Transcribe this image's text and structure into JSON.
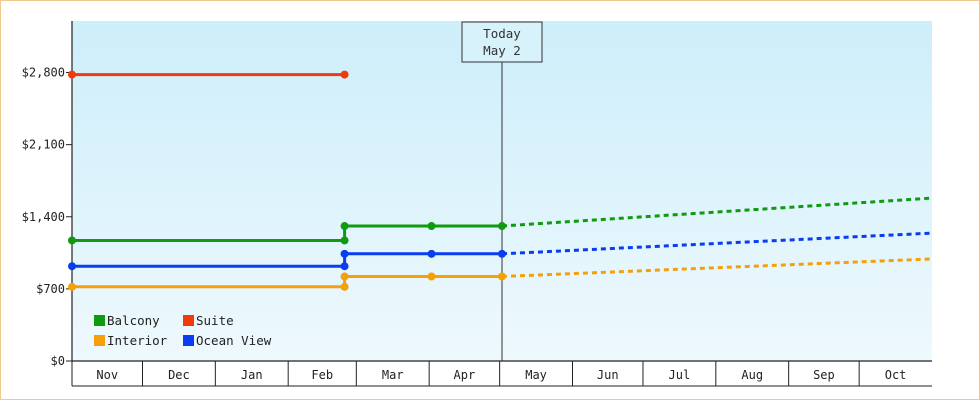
{
  "chart_data": {
    "type": "line",
    "title": "",
    "xlabel": "",
    "ylabel": "",
    "ylim": [
      0,
      3300
    ],
    "y_ticks": [
      {
        "value": 0,
        "label": "$0"
      },
      {
        "value": 700,
        "label": "$700"
      },
      {
        "value": 1400,
        "label": "$1,400"
      },
      {
        "value": 2100,
        "label": "$2,100"
      },
      {
        "value": 2800,
        "label": "$2,800"
      }
    ],
    "months": [
      "Nov",
      "Dec",
      "Jan",
      "Feb",
      "Mar",
      "Apr",
      "May",
      "Jun",
      "Jul",
      "Aug",
      "Sep",
      "Oct"
    ],
    "x_range": [
      "Nov 1",
      "Oct 31"
    ],
    "today": {
      "line1": "Today",
      "line2": "May 2",
      "date": "May 2"
    },
    "legend_placement": "bottom-left",
    "grid": false,
    "series": [
      {
        "name": "Balcony",
        "color": "#0f9a0f",
        "history": [
          [
            "Nov 1",
            1170
          ],
          [
            "Feb 25",
            1170
          ],
          [
            "Feb 25",
            1310
          ],
          [
            "Apr 2",
            1310
          ],
          [
            "May 2",
            1310
          ]
        ],
        "markers": [
          [
            "Nov 1",
            1170
          ],
          [
            "Feb 25",
            1170
          ],
          [
            "Feb 25",
            1310
          ],
          [
            "Apr 2",
            1310
          ],
          [
            "May 2",
            1310
          ]
        ],
        "forecast": [
          [
            "May 2",
            1310
          ],
          [
            "Oct 31",
            1580
          ]
        ]
      },
      {
        "name": "Suite",
        "color": "#f03a0a",
        "history": [
          [
            "Nov 1",
            2780
          ],
          [
            "Feb 25",
            2780
          ]
        ],
        "markers": [
          [
            "Nov 1",
            2780
          ],
          [
            "Feb 25",
            2780
          ]
        ],
        "forecast": []
      },
      {
        "name": "Interior",
        "color": "#f5a00a",
        "history": [
          [
            "Nov 1",
            720
          ],
          [
            "Feb 25",
            720
          ],
          [
            "Feb 25",
            820
          ],
          [
            "Apr 2",
            820
          ],
          [
            "May 2",
            820
          ]
        ],
        "markers": [
          [
            "Nov 1",
            720
          ],
          [
            "Feb 25",
            720
          ],
          [
            "Feb 25",
            820
          ],
          [
            "Apr 2",
            820
          ],
          [
            "May 2",
            820
          ]
        ],
        "forecast": [
          [
            "May 2",
            820
          ],
          [
            "Oct 31",
            990
          ]
        ]
      },
      {
        "name": "Ocean View",
        "color": "#0a3cf0",
        "history": [
          [
            "Nov 1",
            920
          ],
          [
            "Feb 25",
            920
          ],
          [
            "Feb 25",
            1040
          ],
          [
            "Apr 2",
            1040
          ],
          [
            "May 2",
            1040
          ]
        ],
        "markers": [
          [
            "Nov 1",
            920
          ],
          [
            "Feb 25",
            920
          ],
          [
            "Feb 25",
            1040
          ],
          [
            "Apr 2",
            1040
          ],
          [
            "May 2",
            1040
          ]
        ],
        "forecast": [
          [
            "May 2",
            1040
          ],
          [
            "Oct 31",
            1240
          ]
        ]
      }
    ],
    "legend_order": [
      "Balcony",
      "Suite",
      "Interior",
      "Ocean View"
    ]
  }
}
